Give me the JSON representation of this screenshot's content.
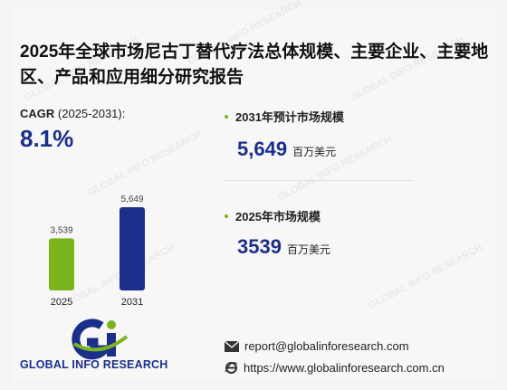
{
  "title": "2025年全球市场尼古丁替代疗法总体规模、主要企业、主要地区、产品和应用细分研究报告",
  "cagr": {
    "label": "CAGR",
    "period": "(2025-2031):",
    "value": "8.1%"
  },
  "stats": [
    {
      "label": "2031年预计市场规模",
      "value": "5,649",
      "unit": "百万美元"
    },
    {
      "label": "2025年市场规模",
      "value": "3539",
      "unit": "百万美元"
    }
  ],
  "chart_data": {
    "type": "bar",
    "categories": [
      "2025",
      "2031"
    ],
    "values": [
      3539,
      5649
    ],
    "value_labels": [
      "3,539",
      "5,649"
    ],
    "colors": [
      "#7ab51d",
      "#1b2f8a"
    ],
    "title": "",
    "xlabel": "",
    "ylabel": "",
    "ylim": [
      0,
      5649
    ],
    "grid": false
  },
  "brand": {
    "name": "GLOBAL INFO RESEARCH",
    "watermark": "GLOBAL INFO RESEARCH"
  },
  "contact": {
    "email": "report@globalinforesearch.com",
    "website": "https://www.globalinforesearch.com.cn"
  },
  "icons": {
    "email": "envelope-icon",
    "website": "ie-browser-icon"
  }
}
